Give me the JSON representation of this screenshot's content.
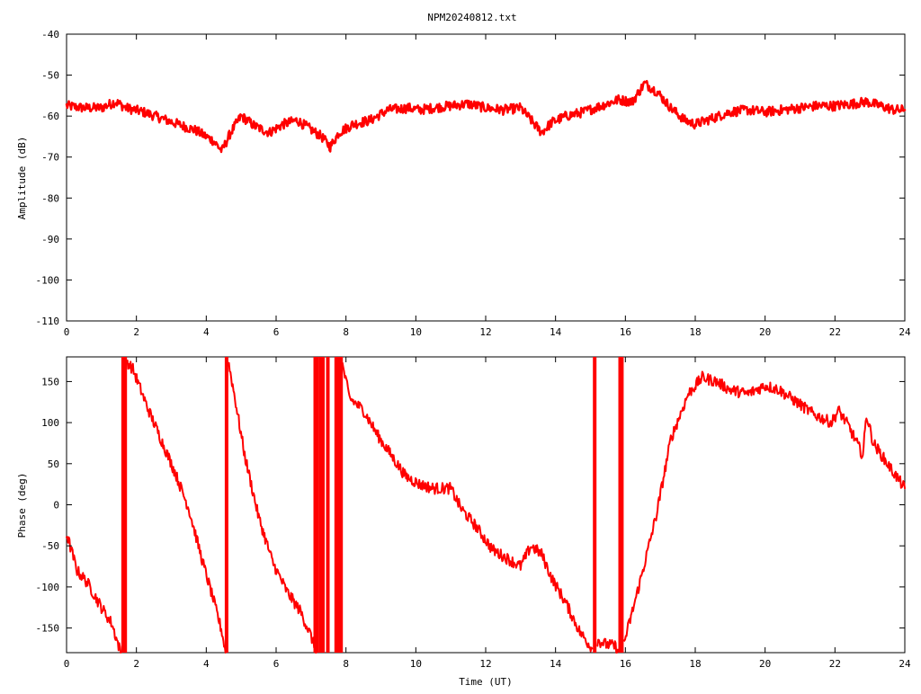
{
  "title": "NPM20240812.txt",
  "colors": {
    "trace": "#ff0000",
    "axes": "#000000",
    "background": "#ffffff"
  },
  "chart_data": [
    {
      "type": "line",
      "title": "NPM20240812.txt",
      "xlabel": "",
      "ylabel": "Amplitude (dB)",
      "xlim": [
        0,
        24
      ],
      "ylim": [
        -110,
        -40
      ],
      "xticks": [
        "0",
        "2",
        "4",
        "6",
        "8",
        "10",
        "12",
        "14",
        "16",
        "18",
        "20",
        "22",
        "24"
      ],
      "yticks": [
        "-40",
        "-50",
        "-60",
        "-70",
        "-80",
        "-90",
        "-100",
        "-110"
      ],
      "grid": false,
      "legend": "none",
      "series": [
        {
          "x": [
            0,
            0.5,
            1.0,
            1.4,
            1.7,
            2.2,
            2.7,
            3.2,
            3.7,
            4.2,
            4.45,
            4.7,
            5.0,
            5.4,
            5.8,
            6.2,
            6.6,
            6.95,
            7.3,
            7.55,
            7.8,
            8.2,
            8.7,
            9.2,
            9.8,
            10.1,
            10.5,
            11.0,
            11.5,
            12.0,
            12.5,
            13.0,
            13.3,
            13.6,
            13.9,
            14.3,
            14.8,
            15.3,
            15.8,
            16.2,
            16.55,
            16.9,
            17.3,
            17.7,
            18.0,
            18.5,
            19.0,
            19.5,
            20.0,
            20.5,
            21.0,
            21.5,
            22.0,
            22.5,
            22.9,
            23.3,
            23.7,
            24.0
          ],
          "y": [
            -57.5,
            -58.0,
            -58.0,
            -56.5,
            -58.0,
            -59.0,
            -60.5,
            -62.0,
            -63.5,
            -66.0,
            -68.5,
            -64.0,
            -60.0,
            -62.5,
            -64.0,
            -62.0,
            -61.0,
            -63.0,
            -65.0,
            -67.5,
            -64.0,
            -62.0,
            -61.0,
            -58.5,
            -58.0,
            -58.5,
            -58.0,
            -57.5,
            -57.0,
            -58.0,
            -58.5,
            -58.0,
            -61.0,
            -64.0,
            -61.5,
            -60.0,
            -59.0,
            -57.5,
            -56.0,
            -56.5,
            -52.0,
            -54.0,
            -58.0,
            -61.0,
            -62.0,
            -60.5,
            -59.0,
            -58.5,
            -59.0,
            -58.5,
            -58.0,
            -57.5,
            -57.5,
            -57.0,
            -56.5,
            -57.5,
            -58.5,
            -58.5
          ]
        }
      ]
    },
    {
      "type": "line",
      "xlabel": "Time (UT)",
      "ylabel": "Phase (deg)",
      "xlim": [
        0,
        24
      ],
      "ylim": [
        -180,
        180
      ],
      "xticks": [
        "0",
        "2",
        "4",
        "6",
        "8",
        "10",
        "12",
        "14",
        "16",
        "18",
        "20",
        "22",
        "24"
      ],
      "yticks": [
        "150",
        "100",
        "50",
        "0",
        "-50",
        "-100",
        "-150"
      ],
      "grid": false,
      "legend": "none",
      "series": [
        {
          "segments": [
            {
              "x": [
                0,
                0.3,
                0.6,
                1.0,
                1.3,
                1.55
              ],
              "y": [
                -35,
                -80,
                -95,
                -125,
                -145,
                -180
              ]
            },
            {
              "x": [
                1.72,
                1.9,
                2.3,
                2.7,
                3.1,
                3.5,
                3.9,
                4.2,
                4.45,
                4.55
              ],
              "y": [
                175,
                165,
                120,
                80,
                40,
                -5,
                -70,
                -115,
                -155,
                -180
              ]
            },
            {
              "x": [
                4.63,
                4.8,
                5.1,
                5.5,
                5.9,
                6.3,
                6.7,
                7.0,
                7.15
              ],
              "y": [
                175,
                135,
                60,
                -15,
                -70,
                -105,
                -130,
                -160,
                -180
              ]
            },
            {
              "x": [
                7.9,
                8.1,
                8.5,
                8.9,
                9.3,
                9.7,
                10.1,
                10.5,
                11.0,
                11.3,
                11.7,
                12.2,
                12.6,
                13.0,
                13.3,
                13.6,
                13.9,
                14.3,
                14.7,
                15.05
              ],
              "y": [
                170,
                130,
                115,
                85,
                60,
                35,
                25,
                20,
                20,
                -5,
                -25,
                -55,
                -65,
                -75,
                -50,
                -60,
                -90,
                -120,
                -155,
                -175
              ]
            },
            {
              "x": [
                15.2,
                15.45,
                15.7,
                15.8
              ],
              "y": [
                -165,
                -170,
                -172,
                -178
              ]
            },
            {
              "x": [
                15.95,
                16.2,
                16.5,
                16.9,
                17.3,
                17.8,
                18.2,
                18.6,
                19.0,
                19.5,
                20.0,
                20.4,
                20.9,
                21.4,
                21.9,
                22.1,
                22.4,
                22.8,
                22.9,
                23.1,
                23.5,
                24.0
              ],
              "y": [
                -170,
                -130,
                -80,
                -10,
                80,
                135,
                155,
                150,
                140,
                135,
                145,
                140,
                125,
                110,
                100,
                115,
                95,
                60,
                110,
                75,
                50,
                20
              ]
            }
          ],
          "jumps_x": [
            1.62,
            1.68,
            4.58,
            7.12,
            7.18,
            7.28,
            7.34,
            7.48,
            7.72,
            7.78,
            7.86,
            15.12,
            15.85,
            15.9
          ]
        }
      ]
    }
  ]
}
